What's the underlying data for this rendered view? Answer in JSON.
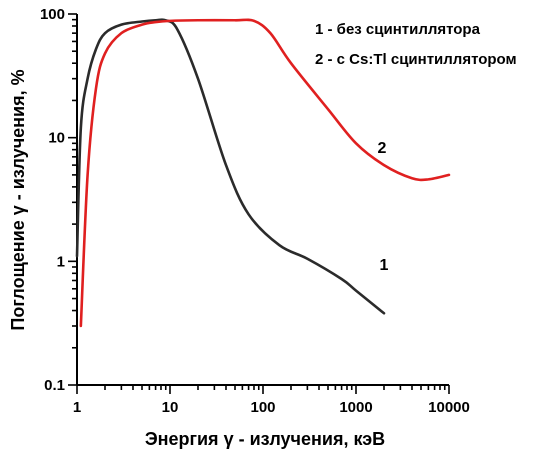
{
  "chart_data": {
    "type": "line",
    "xlabel": "Энергия γ - излучения, кэВ",
    "ylabel": "Поглощение γ - излучения, %",
    "x_scale": "log",
    "y_scale": "log",
    "xlim": [
      1,
      10000
    ],
    "ylim": [
      0.1,
      100
    ],
    "x_ticks": [
      "1",
      "10",
      "100",
      "1000",
      "10000"
    ],
    "y_ticks": [
      "0.1",
      "1",
      "10",
      "100"
    ],
    "legend": {
      "placement": "top-right",
      "entries": [
        "1 - без сцинтиллятора",
        "2 - с Cs:Tl сцинтиллятором"
      ]
    },
    "grid": false,
    "series": [
      {
        "name": "1",
        "color": "#2b2b2b",
        "x": [
          1.0,
          1.1,
          1.3,
          1.6,
          2.0,
          3.0,
          5.0,
          7.0,
          9.0,
          12,
          20,
          40,
          70,
          150,
          300,
          700,
          1000,
          2000
        ],
        "y": [
          1.1,
          12,
          30,
          52,
          70,
          82,
          87,
          89,
          89,
          75,
          30,
          6,
          2.4,
          1.35,
          1.05,
          0.72,
          0.58,
          0.38
        ]
      },
      {
        "name": "2",
        "color": "#e02020",
        "x": [
          1.1,
          1.3,
          1.6,
          2.0,
          3.0,
          5.0,
          7.0,
          10,
          20,
          50,
          80,
          120,
          200,
          500,
          1000,
          2000,
          4000,
          6000,
          10000
        ],
        "y": [
          0.3,
          5,
          25,
          48,
          70,
          82,
          86,
          88,
          89,
          89,
          88,
          70,
          40,
          17,
          9,
          6,
          4.7,
          4.6,
          5.0
        ]
      }
    ],
    "annotations": [
      {
        "text": "1",
        "x": 2000,
        "y": 0.85
      },
      {
        "text": "2",
        "x": 1900,
        "y": 7.5
      }
    ]
  }
}
